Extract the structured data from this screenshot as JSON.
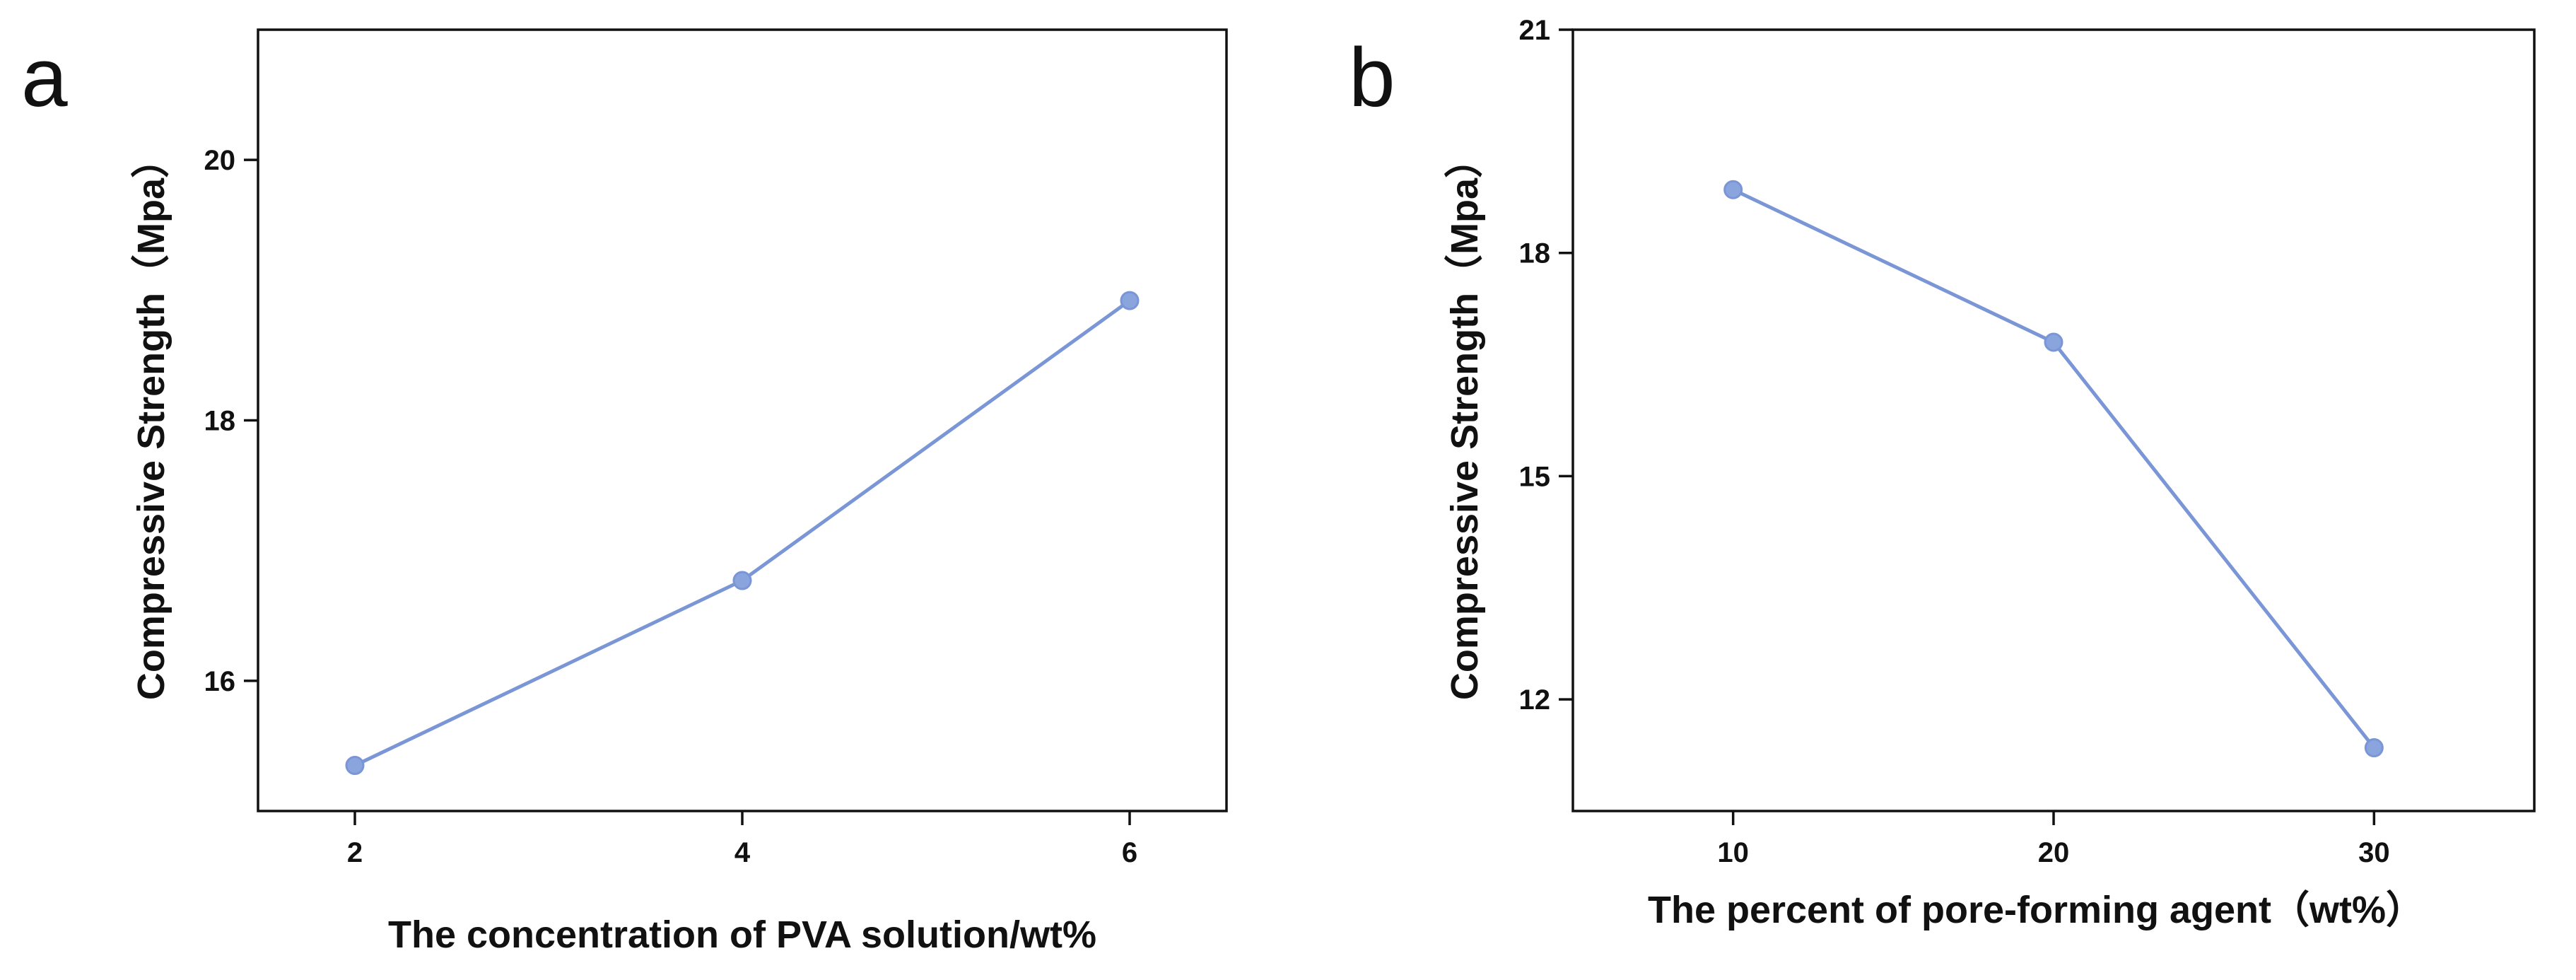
{
  "colors": {
    "series": "#7a96d6",
    "marker_fill": "#8aa4de",
    "axis": "#111111"
  },
  "chart_data": [
    {
      "type": "line",
      "panel_label": "a",
      "xlabel": "The concentration of PVA solution/wt%",
      "ylabel": "Compressive Strength（Mpa）",
      "x": [
        2,
        4,
        6
      ],
      "series": [
        {
          "values": [
            15.35,
            16.77,
            18.92
          ]
        }
      ],
      "xlim": [
        1.5,
        6.5
      ],
      "ylim": [
        15.0,
        21.0
      ],
      "xticks": [
        2,
        4,
        6
      ],
      "yticks": [
        16,
        18,
        20
      ],
      "grid": false,
      "legend": "none"
    },
    {
      "type": "line",
      "panel_label": "b",
      "xlabel": "The percent of pore-forming agent（wt%）",
      "ylabel": "Compressive Strength（Mpa）",
      "x": [
        10,
        20,
        30
      ],
      "series": [
        {
          "values": [
            18.85,
            16.8,
            11.35
          ]
        }
      ],
      "xlim": [
        5,
        35
      ],
      "ylim": [
        10.5,
        21.0
      ],
      "xticks": [
        10,
        20,
        30
      ],
      "yticks": [
        12,
        15,
        18,
        21
      ],
      "grid": false,
      "legend": "none"
    }
  ]
}
